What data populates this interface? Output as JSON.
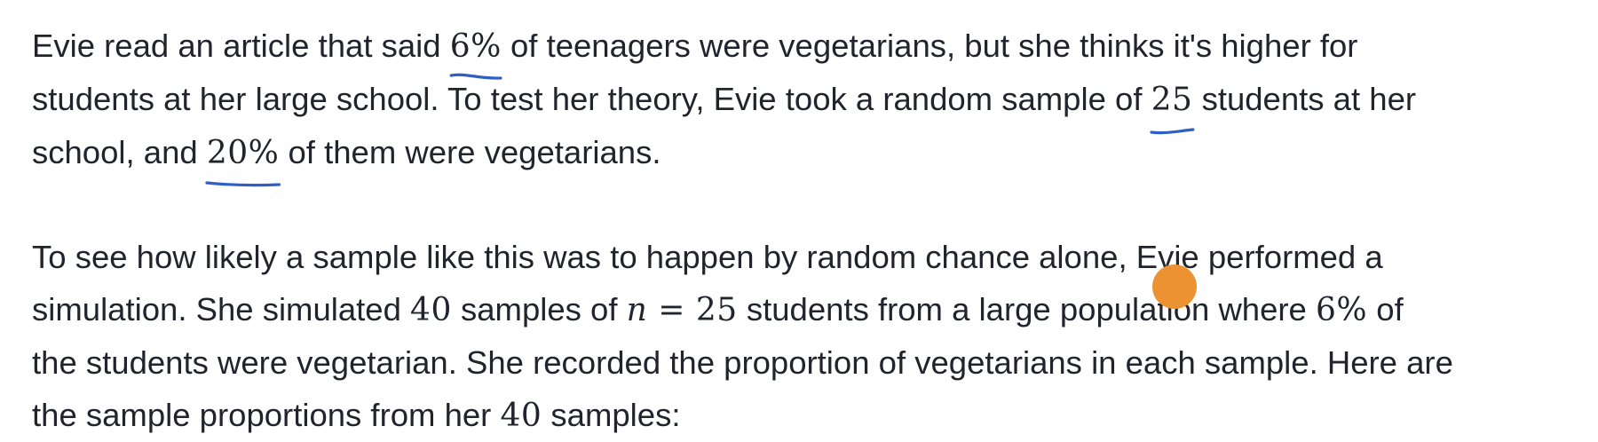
{
  "paragraph1": {
    "line1": {
      "before": "Evie read an article that said ",
      "pct_stated": "6%",
      "after": " of teenagers were vegetarians, but she thinks it's higher for"
    },
    "line2": {
      "before": "students at her large school. To test her theory, Evie took a random sample of ",
      "sample_size": "25",
      "after": " students at her"
    },
    "line3": {
      "before": "school, and ",
      "pct_observed": "20%",
      "after": " of them were vegetarians."
    }
  },
  "paragraph2": {
    "line1": "To see how likely a sample like this was to happen by random chance alone, Evie performed a",
    "line2": {
      "before": "simulation. She simulated ",
      "num_samples": "40",
      "mid1": " samples of ",
      "n_var": "n",
      "equals": " = ",
      "n_value": "25",
      "mid2": " students from a large population where ",
      "pct": "6%",
      "after": " of"
    },
    "line3": "the students were vegetarian. She recorded the proportion of vegetarians in each sample. Here are",
    "line4": {
      "before": "the sample proportions from her ",
      "num_samples": "40",
      "after": " samples:"
    }
  },
  "colors": {
    "text": "#21242c",
    "annotation_ink": "#2f5fc4",
    "cursor": "#ec9233"
  }
}
